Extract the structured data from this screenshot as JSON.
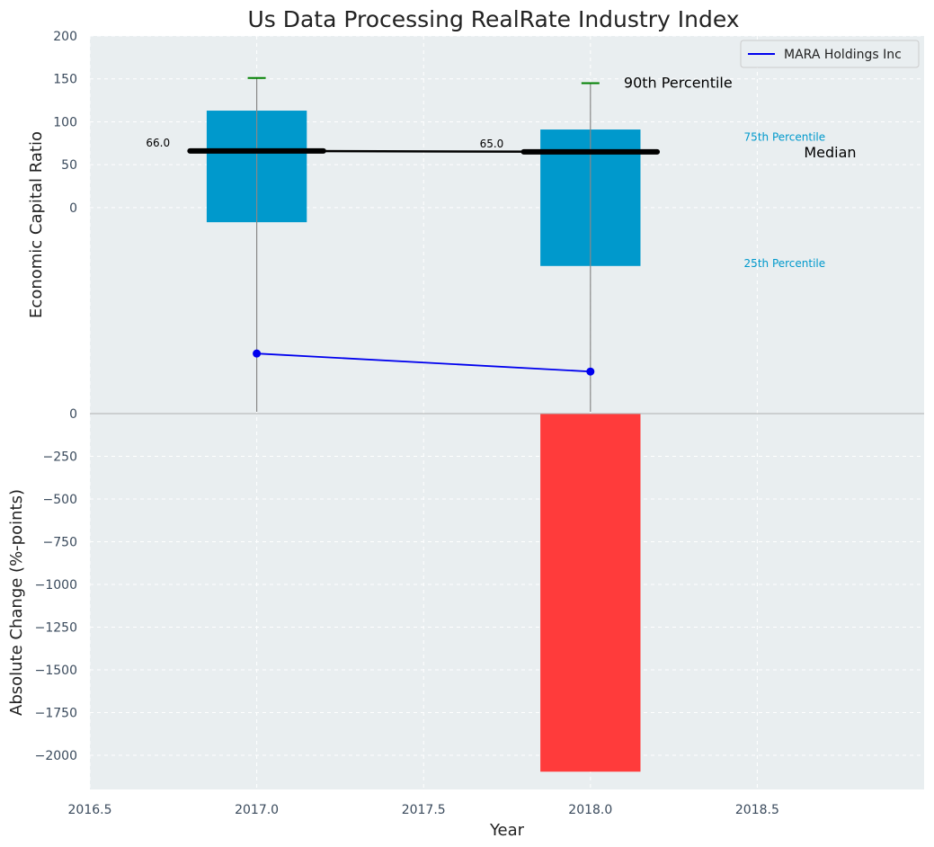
{
  "chart_data": {
    "type": "bar",
    "title": "Us Data Processing RealRate Industry Index",
    "xlabel": "Year",
    "x_ticks": [
      "2016.5",
      "2017.0",
      "2017.5",
      "2018.0",
      "2018.5"
    ],
    "xlim": [
      2016.5,
      2019.0
    ],
    "top_panel": {
      "ylabel": "Economic Capital Ratio",
      "ylim": [
        -240,
        200
      ],
      "y_ticks": [
        "200",
        "150",
        "100",
        "50",
        "0"
      ],
      "grid": true,
      "years": [
        2017.0,
        2018.0
      ],
      "percentile_25": [
        -17,
        -68
      ],
      "percentile_75": [
        113,
        91
      ],
      "percentile_90": [
        151,
        145
      ],
      "whisker_low": [
        -240,
        -240
      ],
      "median": [
        66.0,
        65.0
      ],
      "median_labels": [
        "66.0",
        "65.0"
      ],
      "company_series": {
        "name": "MARA Holdings Inc",
        "values": [
          -170,
          -191
        ]
      },
      "annotations": {
        "p90": "90th Percentile",
        "p75": "75th Percentile",
        "median": "Median",
        "p25": "25th Percentile"
      },
      "legend": "top-right"
    },
    "bottom_panel": {
      "ylabel": "Absolute Change (%-points)",
      "ylim": [
        -2200,
        0
      ],
      "y_ticks": [
        "0",
        "−250",
        "−500",
        "−750",
        "−1000",
        "−1250",
        "−1500",
        "−1750",
        "−2000"
      ],
      "y_tick_values": [
        0,
        -250,
        -500,
        -750,
        -1000,
        -1250,
        -1500,
        -1750,
        -2000
      ],
      "grid": true,
      "years": [
        2017.0,
        2018.0
      ],
      "values": [
        0,
        -2096
      ]
    },
    "colors": {
      "background": "#e9eef0",
      "box": "#0099cc",
      "median_line": "#000000",
      "whisker": "#888888",
      "p90_cap": "#008000",
      "company": "#0000ee",
      "negative_bar": "#ff3b3b",
      "p75_label": "#0099cc",
      "p25_label": "#0099cc"
    }
  }
}
